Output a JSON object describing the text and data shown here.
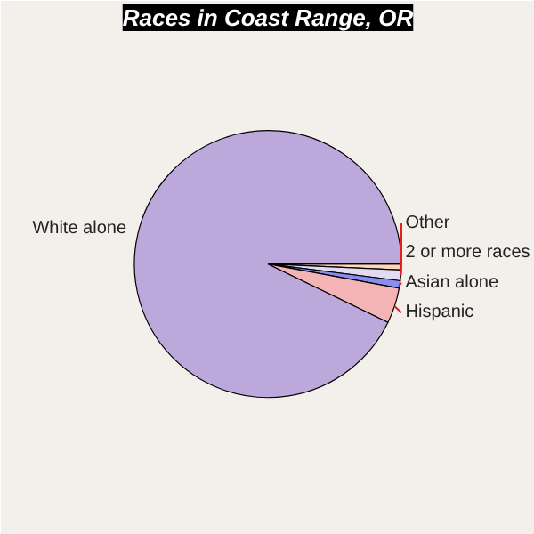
{
  "chart_data": {
    "type": "pie",
    "title": "Races in Coast Range, OR",
    "categories": [
      "Other",
      "2 or more races",
      "Asian alone",
      "Hispanic",
      "White alone"
    ],
    "values": [
      0.7,
      1.3,
      0.9,
      4.3,
      92.8
    ],
    "colors": [
      "#fcd9b4",
      "#e2dcf2",
      "#8a8cf0",
      "#f4b3b5",
      "#bca8da"
    ]
  }
}
